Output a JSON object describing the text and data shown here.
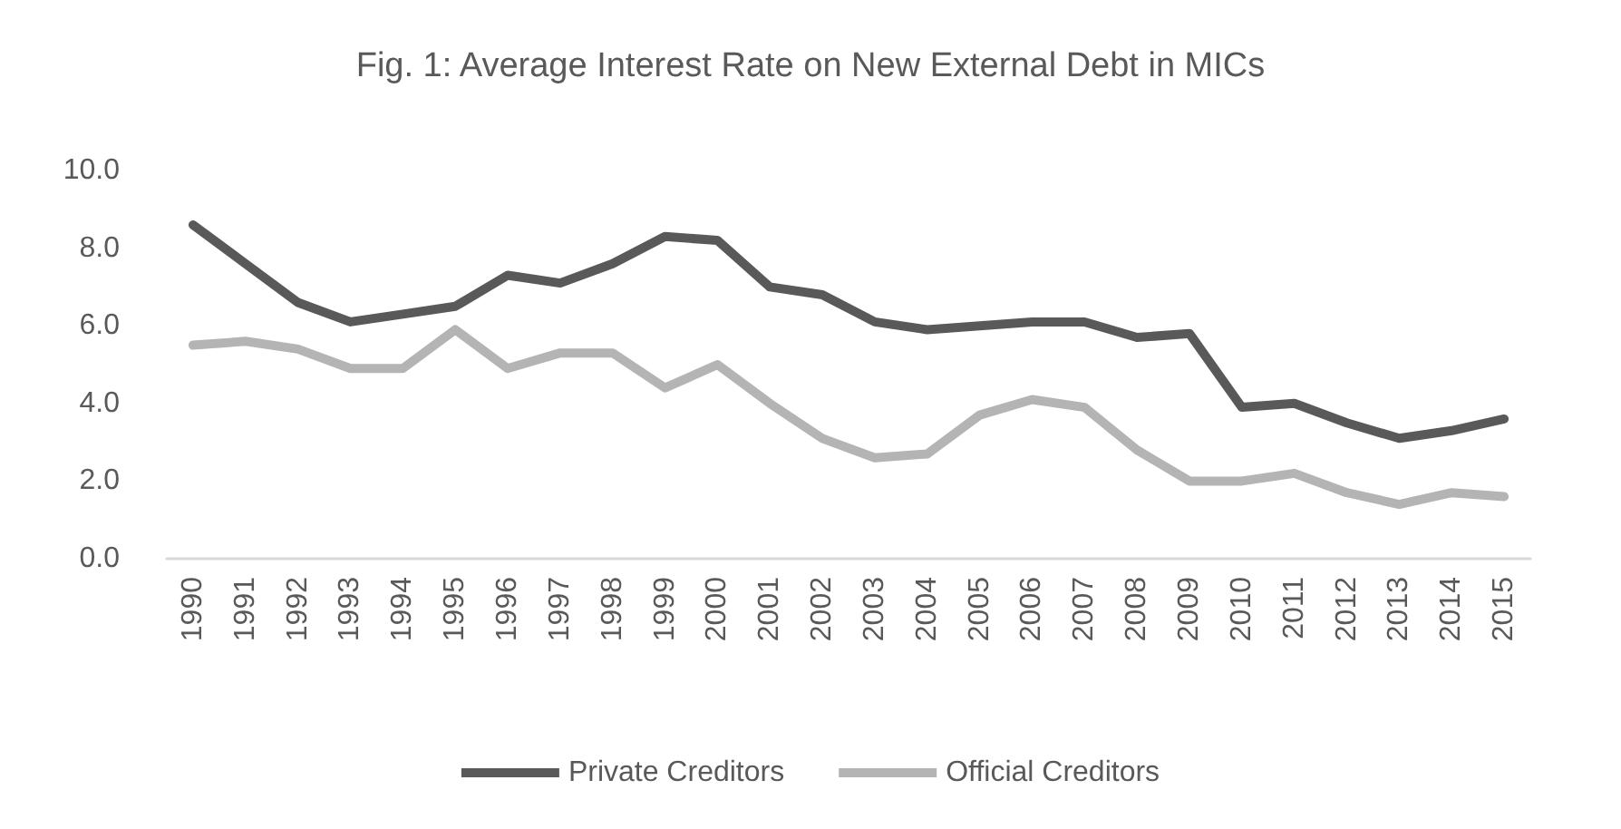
{
  "chart_data": {
    "type": "line",
    "title": "Fig. 1: Average Interest Rate on New External Debt in MICs",
    "categories": [
      "1990",
      "1991",
      "1992",
      "1993",
      "1994",
      "1995",
      "1996",
      "1997",
      "1998",
      "1999",
      "2000",
      "2001",
      "2002",
      "2003",
      "2004",
      "2005",
      "2006",
      "2007",
      "2008",
      "2009",
      "2010",
      "2011",
      "2012",
      "2013",
      "2014",
      "2015"
    ],
    "series": [
      {
        "name": "Private Creditors",
        "color": "#595959",
        "values": [
          8.6,
          7.6,
          6.6,
          6.1,
          6.3,
          6.5,
          7.3,
          7.1,
          7.6,
          8.3,
          8.2,
          7.0,
          6.8,
          6.1,
          5.9,
          6.0,
          6.1,
          6.1,
          5.7,
          5.8,
          3.9,
          4.0,
          3.5,
          3.1,
          3.3,
          3.6
        ]
      },
      {
        "name": "Official Creditors",
        "color": "#b4b4b4",
        "values": [
          5.5,
          5.6,
          5.4,
          4.9,
          4.9,
          5.9,
          4.9,
          5.3,
          5.3,
          4.4,
          5.0,
          4.0,
          3.1,
          2.6,
          2.7,
          3.7,
          4.1,
          3.9,
          2.8,
          2.0,
          2.0,
          2.2,
          1.7,
          1.4,
          1.7,
          1.6
        ]
      }
    ],
    "ylim": [
      0,
      10
    ],
    "yticks": [
      {
        "value": 0,
        "label": "0.0"
      },
      {
        "value": 2,
        "label": "2.0"
      },
      {
        "value": 4,
        "label": "4.0"
      },
      {
        "value": 6,
        "label": "6.0"
      },
      {
        "value": 8,
        "label": "8.0"
      },
      {
        "value": 10,
        "label": "10.0"
      }
    ],
    "grid": false,
    "legend": "bottom",
    "marker": "none",
    "line_style": "solid"
  }
}
